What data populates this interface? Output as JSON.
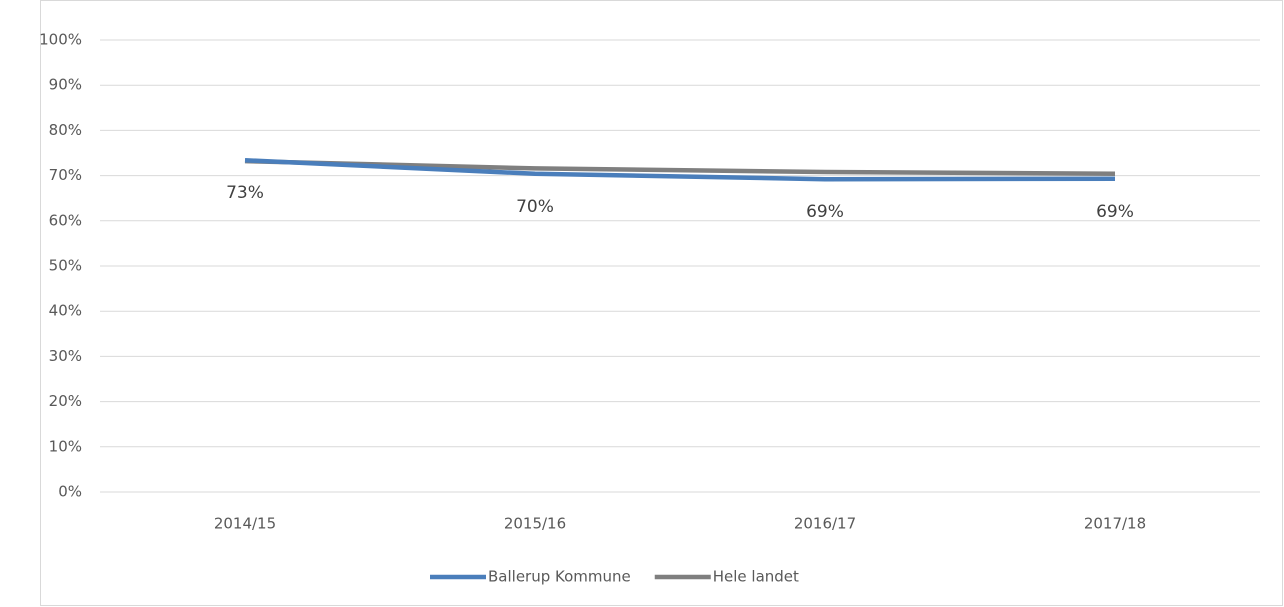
{
  "chart_data": {
    "type": "line",
    "categories": [
      "2014/15",
      "2015/16",
      "2016/17",
      "2017/18"
    ],
    "series": [
      {
        "name": "Ballerup Kommune",
        "color": "#4a7ebb",
        "values": [
          73.4,
          70.4,
          69.2,
          69.3
        ],
        "value_labels": [
          "73%",
          "70%",
          "69%",
          "69%"
        ]
      },
      {
        "name": "Hele landet",
        "color": "#7f7f7f",
        "values": [
          73.2,
          71.6,
          70.8,
          70.4
        ]
      }
    ],
    "ylim": [
      0,
      100
    ],
    "yticks": [
      {
        "value": 0,
        "label": "0%"
      },
      {
        "value": 10,
        "label": "10%"
      },
      {
        "value": 20,
        "label": "20%"
      },
      {
        "value": 30,
        "label": "30%"
      },
      {
        "value": 40,
        "label": "40%"
      },
      {
        "value": 50,
        "label": "50%"
      },
      {
        "value": 60,
        "label": "60%"
      },
      {
        "value": 70,
        "label": "70%"
      },
      {
        "value": 80,
        "label": "80%"
      },
      {
        "value": 90,
        "label": "90%"
      },
      {
        "value": 100,
        "label": "100%"
      }
    ],
    "grid": true,
    "legend": "bottom"
  }
}
